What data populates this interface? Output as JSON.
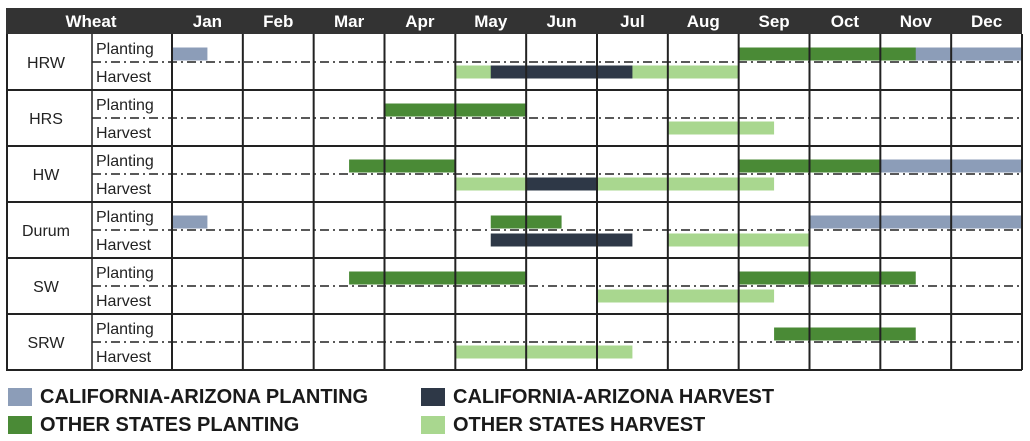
{
  "colors": {
    "ca_planting": "#8c9db8",
    "ca_harvest": "#2e3847",
    "other_planting": "#4a8a36",
    "other_harvest": "#a9d78f",
    "header_bg": "#333333",
    "grid": "#222222"
  },
  "chart_data": {
    "type": "table",
    "header_label": "Wheat",
    "months": [
      "Jan",
      "Feb",
      "Mar",
      "Apr",
      "May",
      "Jun",
      "Jul",
      "Aug",
      "Sep",
      "Oct",
      "Nov",
      "Dec"
    ],
    "row_labels": [
      "Planting",
      "Harvest"
    ],
    "crops": [
      {
        "name": "HRW",
        "planting": [
          {
            "series": "ca_planting",
            "start": 0,
            "end": 0.5
          },
          {
            "series": "ca_planting",
            "start": 9.5,
            "end": 12
          },
          {
            "series": "other_planting",
            "start": 8,
            "end": 10.5
          }
        ],
        "harvest": [
          {
            "series": "ca_harvest",
            "start": 4.5,
            "end": 6.5
          },
          {
            "series": "other_harvest",
            "start": 4,
            "end": 8
          }
        ]
      },
      {
        "name": "HRS",
        "planting": [
          {
            "series": "other_planting",
            "start": 3,
            "end": 5
          }
        ],
        "harvest": [
          {
            "series": "other_harvest",
            "start": 7,
            "end": 8.5
          }
        ]
      },
      {
        "name": "HW",
        "planting": [
          {
            "series": "ca_planting",
            "start": 9.5,
            "end": 12
          },
          {
            "series": "other_planting",
            "start": 2.5,
            "end": 4
          },
          {
            "series": "other_planting",
            "start": 8,
            "end": 10
          }
        ],
        "harvest": [
          {
            "series": "ca_harvest",
            "start": 5,
            "end": 6
          },
          {
            "series": "other_harvest",
            "start": 4,
            "end": 8.5
          }
        ]
      },
      {
        "name": "Durum",
        "planting": [
          {
            "series": "ca_planting",
            "start": 0,
            "end": 0.5
          },
          {
            "series": "ca_planting",
            "start": 9,
            "end": 12
          },
          {
            "series": "other_planting",
            "start": 4.5,
            "end": 5.5
          }
        ],
        "harvest": [
          {
            "series": "ca_harvest",
            "start": 4.5,
            "end": 6.5
          },
          {
            "series": "other_harvest",
            "start": 7,
            "end": 9
          }
        ]
      },
      {
        "name": "SW",
        "planting": [
          {
            "series": "other_planting",
            "start": 2.5,
            "end": 5
          },
          {
            "series": "other_planting",
            "start": 8,
            "end": 10.5
          }
        ],
        "harvest": [
          {
            "series": "other_harvest",
            "start": 6,
            "end": 8.5
          }
        ]
      },
      {
        "name": "SRW",
        "planting": [
          {
            "series": "other_planting",
            "start": 8.5,
            "end": 10.5
          }
        ],
        "harvest": [
          {
            "series": "other_harvest",
            "start": 4,
            "end": 6.5
          }
        ]
      }
    ],
    "legend": [
      {
        "key": "ca_planting",
        "label": "CALIFORNIA-ARIZONA PLANTING"
      },
      {
        "key": "ca_harvest",
        "label": "CALIFORNIA-ARIZONA HARVEST"
      },
      {
        "key": "other_planting",
        "label": "OTHER STATES PLANTING"
      },
      {
        "key": "other_harvest",
        "label": "OTHER STATES HARVEST"
      }
    ]
  }
}
